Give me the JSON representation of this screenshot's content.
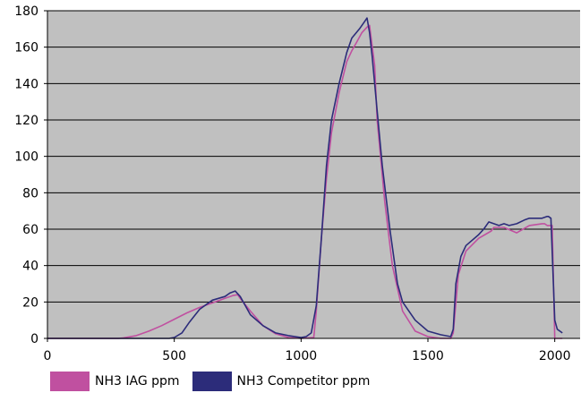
{
  "chart_data": {
    "type": "line",
    "title": "",
    "xlabel": "",
    "ylabel": "",
    "xlim": [
      0,
      2100
    ],
    "ylim": [
      0,
      180
    ],
    "x_ticks": [
      0,
      500,
      1000,
      1500,
      2000
    ],
    "y_ticks": [
      0,
      20,
      40,
      60,
      80,
      100,
      120,
      140,
      160,
      180
    ],
    "grid": "horizontal",
    "background_color": "#c0c0c0",
    "legend": "bottom",
    "series": [
      {
        "name": "NH3 IAG ppm",
        "color": "#c050a0",
        "x": [
          0,
          100,
          200,
          280,
          300,
          350,
          400,
          450,
          500,
          550,
          600,
          650,
          700,
          730,
          750,
          760,
          800,
          850,
          900,
          950,
          1000,
          1050,
          1060,
          1080,
          1100,
          1120,
          1150,
          1180,
          1200,
          1220,
          1240,
          1260,
          1270,
          1290,
          1300,
          1330,
          1360,
          1400,
          1450,
          1500,
          1550,
          1590,
          1600,
          1620,
          1650,
          1700,
          1750,
          1760,
          1800,
          1850,
          1900,
          1950,
          1960,
          1970,
          1980,
          1990,
          2000,
          2010,
          2030
        ],
        "y": [
          0,
          0,
          0,
          0,
          0.3,
          1.5,
          4,
          7,
          10.5,
          14,
          17,
          19.5,
          22,
          23.5,
          24,
          22,
          15,
          7,
          2.5,
          0.5,
          0,
          0.5,
          15,
          55,
          88,
          113,
          135,
          152,
          158,
          163,
          168,
          171,
          172,
          150,
          120,
          75,
          40,
          15,
          4,
          1,
          0,
          0,
          3,
          35,
          48,
          55,
          59,
          61,
          61,
          58,
          62,
          63,
          63,
          62,
          62,
          62,
          0,
          0,
          0
        ]
      },
      {
        "name": "NH3 Competitor ppm",
        "color": "#2c2c7a",
        "x": [
          0,
          100,
          200,
          300,
          400,
          480,
          500,
          530,
          560,
          600,
          650,
          700,
          720,
          740,
          760,
          780,
          800,
          850,
          900,
          950,
          1000,
          1020,
          1040,
          1060,
          1080,
          1100,
          1120,
          1150,
          1180,
          1200,
          1230,
          1250,
          1260,
          1270,
          1280,
          1300,
          1320,
          1350,
          1380,
          1400,
          1450,
          1500,
          1550,
          1590,
          1600,
          1610,
          1630,
          1650,
          1700,
          1720,
          1740,
          1760,
          1780,
          1800,
          1820,
          1850,
          1880,
          1900,
          1950,
          1970,
          1975,
          1985,
          2000,
          2010,
          2030
        ],
        "y": [
          0,
          0,
          0,
          0,
          0,
          0,
          0.5,
          3,
          9,
          16,
          21,
          23,
          25,
          26,
          23,
          18,
          13,
          7,
          3,
          1.5,
          0.5,
          1,
          3,
          18,
          55,
          95,
          120,
          140,
          157,
          165,
          170,
          174,
          176,
          168,
          155,
          125,
          95,
          60,
          30,
          20,
          10,
          4,
          2,
          1,
          5,
          30,
          45,
          51,
          57,
          60,
          64,
          63,
          62,
          63,
          62,
          63,
          65,
          66,
          66,
          67,
          67,
          66,
          10,
          5,
          3
        ]
      }
    ]
  }
}
